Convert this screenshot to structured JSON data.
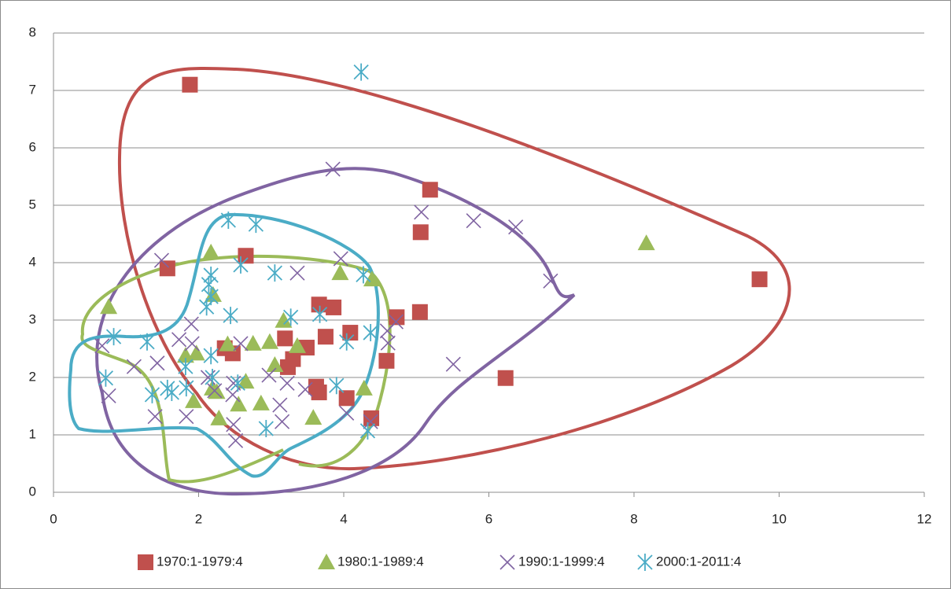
{
  "chart_data": {
    "type": "scatter",
    "xlim": [
      0,
      12
    ],
    "xticks": [
      0,
      2,
      4,
      6,
      8,
      10,
      12
    ],
    "ylim": [
      0,
      8
    ],
    "yticks": [
      0,
      1,
      2,
      3,
      4,
      5,
      6,
      7,
      8
    ],
    "grid": true,
    "legend": "bottom",
    "series": [
      {
        "name": "1970:1-1979:4",
        "color": "#c0504d",
        "marker": "square",
        "x": [
          1.88,
          1.57,
          2.65,
          5.19,
          5.06,
          9.73,
          6.23,
          5.05,
          4.73,
          3.66,
          3.86,
          3.75,
          4.09,
          4.59,
          3.19,
          3.49,
          3.3,
          3.23,
          2.36,
          2.47,
          3.62,
          3.66,
          4.04,
          4.38
        ],
        "values": [
          7.1,
          3.9,
          4.12,
          5.27,
          4.53,
          3.71,
          1.99,
          3.14,
          3.05,
          3.27,
          3.22,
          2.71,
          2.78,
          2.29,
          2.68,
          2.52,
          2.32,
          2.18,
          2.51,
          2.42,
          1.84,
          1.74,
          1.64,
          1.29
        ]
      },
      {
        "name": "1980:1-1989:4",
        "color": "#9bbb59",
        "marker": "triangle",
        "x": [
          8.17,
          0.76,
          2.17,
          2.2,
          3.95,
          4.39,
          3.17,
          2.4,
          2.75,
          2.98,
          3.36,
          3.05,
          1.82,
          1.97,
          2.65,
          2.19,
          2.25,
          1.93,
          2.55,
          2.86,
          3.58,
          4.28,
          2.28
        ],
        "values": [
          4.34,
          3.23,
          4.18,
          3.44,
          3.82,
          3.71,
          2.99,
          2.58,
          2.59,
          2.62,
          2.55,
          2.22,
          2.38,
          2.42,
          1.93,
          1.81,
          1.75,
          1.59,
          1.53,
          1.55,
          1.3,
          1.81,
          1.29
        ]
      },
      {
        "name": "1990:1-1999:4",
        "color": "#8064a2",
        "marker": "x",
        "x": [
          3.85,
          5.07,
          5.79,
          6.37,
          6.85,
          5.51,
          3.96,
          3.36,
          1.49,
          1.73,
          1.91,
          1.11,
          1.43,
          0.76,
          1.4,
          1.83,
          2.13,
          2.22,
          2.47,
          2.58,
          2.48,
          2.48,
          2.51,
          2.97,
          3.12,
          3.15,
          3.22,
          3.47,
          4.04,
          4.37,
          4.6,
          4.72,
          4.61,
          0.67,
          1.9
        ],
        "values": [
          5.63,
          4.88,
          4.73,
          4.62,
          3.68,
          2.23,
          4.07,
          3.82,
          4.04,
          2.66,
          2.59,
          2.19,
          2.25,
          1.68,
          1.32,
          1.32,
          2.0,
          1.77,
          1.7,
          2.59,
          1.9,
          1.18,
          0.9,
          2.04,
          1.52,
          1.23,
          1.9,
          1.79,
          1.38,
          1.23,
          2.81,
          2.97,
          2.6,
          2.55,
          2.93
        ]
      },
      {
        "name": "2000:1-2011:4",
        "color": "#4bacc6",
        "marker": "asterisk",
        "x": [
          4.24,
          2.41,
          2.79,
          2.58,
          3.05,
          2.17,
          2.14,
          2.17,
          2.11,
          2.44,
          3.27,
          3.67,
          4.27,
          4.37,
          4.04,
          0.83,
          1.29,
          0.72,
          1.36,
          1.57,
          1.63,
          1.83,
          1.82,
          2.17,
          2.19,
          2.54,
          2.93,
          3.9,
          4.33
        ],
        "values": [
          7.32,
          4.74,
          4.67,
          3.96,
          3.82,
          3.78,
          3.62,
          3.41,
          3.23,
          3.08,
          3.05,
          3.1,
          3.79,
          2.78,
          2.62,
          2.71,
          2.62,
          1.99,
          1.7,
          1.81,
          1.74,
          1.82,
          2.19,
          2.38,
          2.0,
          1.9,
          1.11,
          1.86,
          1.07
        ]
      }
    ]
  }
}
